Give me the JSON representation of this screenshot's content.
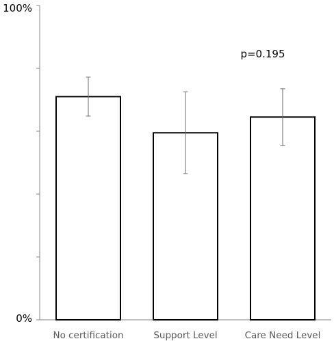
{
  "chart_data": {
    "type": "bar",
    "categories": [
      "No certification",
      "Support Level",
      "Care Need Level"
    ],
    "values": [
      71,
      59.5,
      64.5
    ],
    "error_bars": [
      {
        "low": 64.8,
        "high": 77.2
      },
      {
        "low": 46.5,
        "high": 72.5
      },
      {
        "low": 55.5,
        "high": 73.5
      }
    ],
    "ylim": [
      0,
      100
    ],
    "ytick_labels": {
      "top": "100%",
      "bottom": "0%"
    },
    "yticks": [
      0,
      20,
      40,
      60,
      80,
      100
    ],
    "annotation": "p=0.195",
    "title": "",
    "xlabel": "",
    "ylabel": "",
    "grid": false,
    "colors": {
      "bar_fill": "#ffffff",
      "bar_stroke": "#000000",
      "error_bar": "#6b6b6b",
      "axis": "#868686",
      "category_text": "#595959"
    }
  }
}
